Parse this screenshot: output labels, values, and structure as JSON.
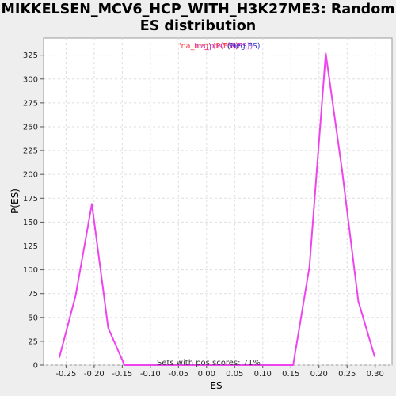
{
  "chart_data": {
    "type": "line",
    "title_lines": [
      "MIKKELSEN_MCV6_HCP_WITH_H3K27ME3: Random",
      "ES distribution"
    ],
    "xlabel": "ES",
    "ylabel": "P(ES)",
    "xlim": [
      -0.29,
      0.33
    ],
    "ylim": [
      0,
      343
    ],
    "xticks": [
      -0.25,
      -0.2,
      -0.15,
      -0.1,
      -0.05,
      0.0,
      0.05,
      0.1,
      0.15,
      0.2,
      0.25,
      0.3
    ],
    "xtick_labels": [
      "-0.25",
      "-0.20",
      "-0.15",
      "-0.10",
      "-0.05",
      "0.00",
      "0.05",
      "0.10",
      "0.15",
      "0.20",
      "0.25",
      "0.30"
    ],
    "yticks": [
      0,
      25,
      50,
      75,
      100,
      125,
      150,
      175,
      200,
      225,
      250,
      275,
      300,
      325
    ],
    "ytick_labels": [
      "0",
      "25",
      "50",
      "75",
      "100",
      "125",
      "150",
      "175",
      "200",
      "225",
      "250",
      "275",
      "300",
      "325"
    ],
    "grid": true,
    "series": [
      {
        "name": "",
        "color": "#ee44ee",
        "x": [
          -0.262,
          -0.233,
          -0.204,
          -0.175,
          -0.146,
          -0.117,
          -0.088,
          -0.059,
          -0.03,
          -0.001,
          0.028,
          0.057,
          0.086,
          0.115,
          0.154,
          0.183,
          0.212,
          0.241,
          0.27,
          0.299
        ],
        "y": [
          8,
          73,
          169,
          39,
          0,
          0,
          0,
          0,
          0,
          0,
          0,
          0,
          0,
          0,
          0,
          103,
          327,
          205,
          67,
          9
        ]
      }
    ],
    "legend": {
      "placement": "top-center",
      "entries": [
        {
          "text": "'na_neg' (P(ES))",
          "color": "#ff3333"
        },
        {
          "text": "'na_pos' (P(ES))",
          "color": "#cc33cc"
        },
        {
          "text": "(Neg ES)",
          "color": "#3333cc"
        }
      ]
    },
    "annotation": "Sets with pos scores: 71%"
  }
}
